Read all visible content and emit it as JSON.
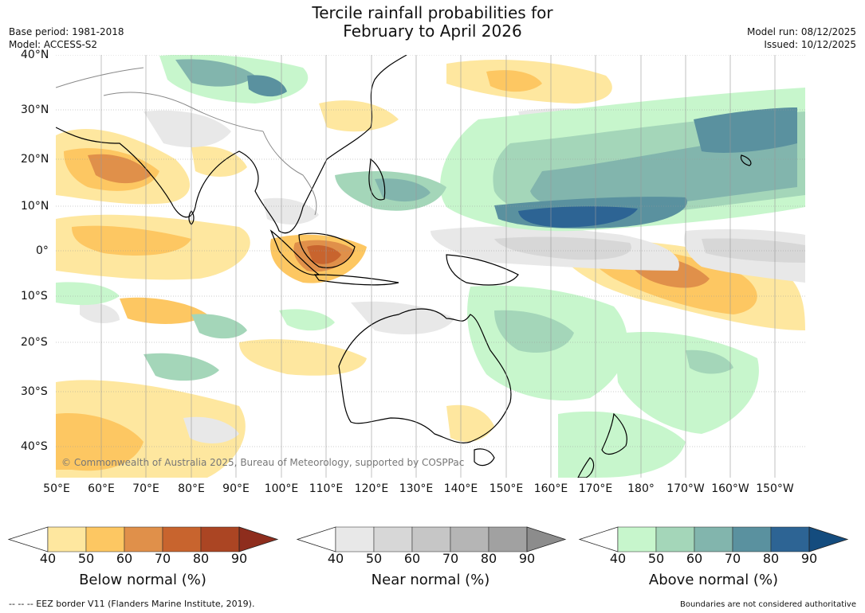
{
  "title": {
    "line1": "Tercile rainfall probabilities for",
    "line2": "February to April 2026"
  },
  "meta": {
    "base_period": "Base period: 1981-2018",
    "model": "Model: ACCESS-S2",
    "model_run": "Model run: 08/12/2025",
    "issued": "Issued: 10/12/2025"
  },
  "map": {
    "lat_labels": [
      "40°N",
      "30°N",
      "20°N",
      "10°N",
      "0°",
      "10°S",
      "20°S",
      "30°S",
      "40°S"
    ],
    "lon_labels": [
      "50°E",
      "60°E",
      "70°E",
      "80°E",
      "90°E",
      "100°E",
      "110°E",
      "120°E",
      "130°E",
      "140°E",
      "150°E",
      "160°E",
      "170°E",
      "180°",
      "170°W",
      "160°W",
      "150°W"
    ],
    "copyright": "© Commonwealth of Australia 2025, Bureau of Meteorology, supported by COSPPac"
  },
  "colorbars": {
    "below": {
      "title": "Below normal (%)",
      "ticks": [
        "40",
        "50",
        "60",
        "70",
        "80",
        "90"
      ],
      "colors": [
        "#fee79f",
        "#fdc762",
        "#e0904a",
        "#c8642e",
        "#ab4523",
        "#8e2d1d"
      ]
    },
    "near": {
      "title": "Near normal (%)",
      "ticks": [
        "40",
        "50",
        "60",
        "70",
        "80",
        "90"
      ],
      "colors": [
        "#e8e8e8",
        "#d7d7d7",
        "#c6c6c6",
        "#b5b5b5",
        "#a1a1a1",
        "#8c8c8c"
      ]
    },
    "above": {
      "title": "Above normal (%)",
      "ticks": [
        "40",
        "50",
        "60",
        "70",
        "80",
        "90"
      ],
      "colors": [
        "#c7f6cc",
        "#a4d6b9",
        "#82b5ad",
        "#5a919f",
        "#2d6494",
        "#144c7e"
      ]
    }
  },
  "footer": {
    "eez": "--  --  -- EEZ border V11 (Flanders Marine Institute, 2019).",
    "disclaimer": "Boundaries are not considered authoritative"
  }
}
